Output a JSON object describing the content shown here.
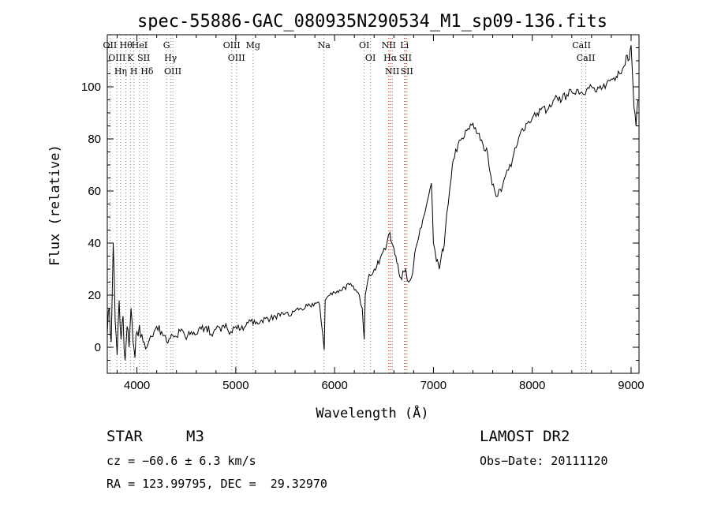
{
  "chart_data": {
    "type": "line",
    "title": "spec-55886-GAC_080935N290534_M1_sp09-136.fits",
    "xlabel": "Wavelength (Å)",
    "ylabel": "Flux (relative)",
    "xlim": [
      3700,
      9080
    ],
    "ylim": [
      -10,
      120
    ],
    "xticks": [
      4000,
      5000,
      6000,
      7000,
      8000,
      9000
    ],
    "yticks": [
      0,
      20,
      40,
      60,
      80,
      100
    ],
    "series": [
      {
        "x": [
          3700,
          3720,
          3740,
          3760,
          3780,
          3800,
          3820,
          3840,
          3860,
          3880,
          3900,
          3920,
          3940,
          3960,
          3980,
          4000,
          4050,
          4100,
          4150,
          4200,
          4250,
          4300,
          4350,
          4400,
          4450,
          4500,
          4550,
          4600,
          4650,
          4700,
          4750,
          4800,
          4850,
          4900,
          4950,
          5000,
          5050,
          5100,
          5150,
          5200,
          5250,
          5300,
          5350,
          5400,
          5450,
          5500,
          5550,
          5600,
          5650,
          5700,
          5750,
          5800,
          5850,
          5880,
          5895,
          5905,
          5920,
          5950,
          6000,
          6050,
          6100,
          6150,
          6200,
          6250,
          6280,
          6300,
          6310,
          6320,
          6350,
          6400,
          6450,
          6480,
          6500,
          6530,
          6560,
          6580,
          6600,
          6620,
          6640,
          6660,
          6680,
          6700,
          6720,
          6750,
          6780,
          6800,
          6820,
          6850,
          6880,
          6900,
          6950,
          6980,
          7000,
          7030,
          7050,
          7060,
          7080,
          7100,
          7120,
          7150,
          7180,
          7200,
          7250,
          7300,
          7350,
          7400,
          7450,
          7500,
          7550,
          7580,
          7620,
          7650,
          7700,
          7730,
          7760,
          7800,
          7850,
          7900,
          7950,
          8000,
          8050,
          8100,
          8150,
          8200,
          8250,
          8300,
          8350,
          8400,
          8450,
          8500,
          8550,
          8600,
          8650,
          8700,
          8750,
          8800,
          8850,
          8870,
          8900,
          8930,
          8950,
          8970,
          8990,
          9000,
          9030,
          9050,
          9070
        ],
        "y": [
          5,
          15,
          2,
          40,
          10,
          -3,
          18,
          3,
          12,
          -5,
          8,
          0,
          15,
          2,
          -4,
          6,
          5,
          0,
          4,
          8,
          6,
          2,
          5,
          4,
          7,
          3,
          6,
          5,
          7,
          8,
          5,
          7,
          6,
          9,
          6,
          8,
          7,
          8,
          10,
          9,
          10,
          11,
          11,
          12,
          12,
          13,
          12,
          14,
          15,
          15,
          16,
          17,
          16,
          5,
          -1,
          18,
          19,
          20,
          21,
          22,
          23,
          24,
          22,
          20,
          15,
          3,
          20,
          22,
          28,
          30,
          32,
          36,
          38,
          40,
          44,
          40,
          38,
          35,
          32,
          27,
          26,
          29,
          30,
          25,
          27,
          32,
          38,
          42,
          46,
          50,
          58,
          63,
          40,
          33,
          32,
          30,
          35,
          37,
          45,
          55,
          65,
          72,
          78,
          80,
          84,
          86,
          82,
          78,
          74,
          66,
          60,
          58,
          62,
          66,
          68,
          72,
          78,
          84,
          86,
          88,
          90,
          92,
          91,
          93,
          96,
          95,
          97,
          98,
          99,
          98,
          99,
          100,
          98,
          99,
          101,
          103,
          104,
          106,
          105,
          108,
          112,
          110,
          114,
          116,
          92,
          85,
          95
        ]
      }
    ],
    "line_markers": [
      {
        "wavelength": 3727,
        "label": "OII"
      },
      {
        "wavelength": 3798,
        "label": "OIII"
      },
      {
        "wavelength": 3835,
        "label": "Hη"
      },
      {
        "wavelength": 3889,
        "label": "Hθ"
      },
      {
        "wavelength": 3934,
        "label": "K"
      },
      {
        "wavelength": 3969,
        "label": "H"
      },
      {
        "wavelength": 4026,
        "label": "HeI"
      },
      {
        "wavelength": 4069,
        "label": "SII"
      },
      {
        "wavelength": 4102,
        "label": "Hδ"
      },
      {
        "wavelength": 4300,
        "label": "G"
      },
      {
        "wavelength": 4340,
        "label": "Hγ"
      },
      {
        "wavelength": 4363,
        "label": "OIII"
      },
      {
        "wavelength": 4959,
        "label": "OIII"
      },
      {
        "wavelength": 5007,
        "label": "OIII"
      },
      {
        "wavelength": 5175,
        "label": "Mg"
      },
      {
        "wavelength": 5893,
        "label": "Na"
      },
      {
        "wavelength": 6300,
        "label": "OI"
      },
      {
        "wavelength": 6363,
        "label": "OI"
      },
      {
        "wavelength": 6548,
        "label": "NII"
      },
      {
        "wavelength": 6563,
        "label": "Hα"
      },
      {
        "wavelength": 6583,
        "label": "NII"
      },
      {
        "wavelength": 6707,
        "label": "Li"
      },
      {
        "wavelength": 6716,
        "label": "SII"
      },
      {
        "wavelength": 6731,
        "label": "SII"
      },
      {
        "wavelength": 8498,
        "label": "CaII"
      },
      {
        "wavelength": 8542,
        "label": "CaII"
      }
    ],
    "legend": "none",
    "grid": false
  },
  "info": {
    "class": "STAR",
    "subclass": "M3",
    "survey": "LAMOST DR2",
    "cz": "cz = −60.6 ± 6.3 km/s",
    "obs_date": "Obs−Date: 20111120",
    "coords": "RA = 123.99795, DEC =  29.32970"
  }
}
